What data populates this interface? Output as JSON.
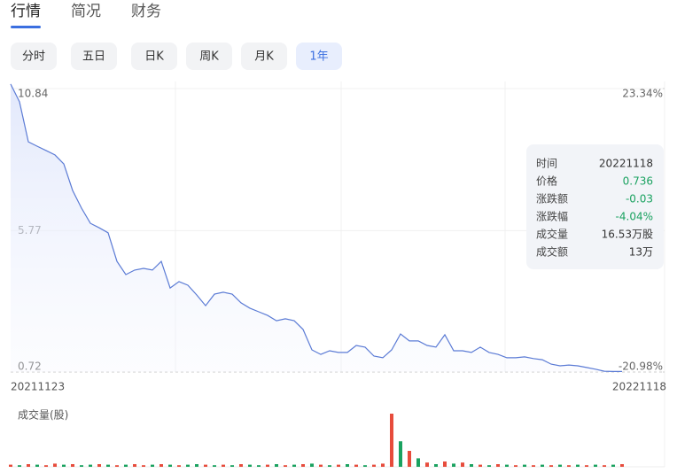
{
  "tabs": {
    "items": [
      "行情",
      "简况",
      "财务"
    ],
    "active": 0
  },
  "periods": {
    "items": [
      "分时",
      "五日",
      "日K",
      "周K",
      "月K",
      "1年"
    ],
    "active": 5
  },
  "chart_data": {
    "type": "line",
    "color": "#5b7bd5",
    "values": [
      11.0,
      10.37,
      8.94,
      8.78,
      8.63,
      8.47,
      8.15,
      7.2,
      6.57,
      6.03,
      5.87,
      5.69,
      4.67,
      4.2,
      4.36,
      4.42,
      4.36,
      4.67,
      3.72,
      3.95,
      3.82,
      3.47,
      3.09,
      3.5,
      3.57,
      3.5,
      3.19,
      3.0,
      2.87,
      2.74,
      2.55,
      2.62,
      2.55,
      2.24,
      1.51,
      1.35,
      1.48,
      1.42,
      1.42,
      1.67,
      1.61,
      1.29,
      1.23,
      1.51,
      2.08,
      1.83,
      1.83,
      1.67,
      1.61,
      2.05,
      1.48,
      1.48,
      1.42,
      1.61,
      1.42,
      1.35,
      1.23,
      1.23,
      1.26,
      1.2,
      1.16,
      1.0,
      0.94,
      0.97,
      0.94,
      0.88,
      0.82,
      0.75,
      0.74,
      0.74
    ],
    "ylim": [
      0.72,
      10.84
    ],
    "yticks": [
      0.72,
      5.77,
      10.84
    ],
    "y2lim": [
      -20.98,
      23.34
    ],
    "y2ticks": [
      {
        "value": -20.98,
        "label": "-20.98%"
      },
      {
        "value": 23.34,
        "label": "23.34%"
      }
    ],
    "x_labels": [
      "20211123",
      "20221118"
    ],
    "volume": {
      "title": "成交量(股)",
      "ylim": [
        0,
        100
      ],
      "values": [
        4,
        3,
        5,
        4,
        3,
        6,
        4,
        5,
        3,
        4,
        5,
        4,
        3,
        4,
        5,
        3,
        4,
        5,
        4,
        3,
        4,
        5,
        4,
        3,
        4,
        3,
        5,
        4,
        3,
        4,
        5,
        3,
        4,
        5,
        6,
        4,
        3,
        4,
        5,
        4,
        3,
        4,
        6,
        100,
        48,
        30,
        16,
        8,
        5,
        10,
        6,
        8,
        5,
        4,
        3,
        5,
        4,
        3,
        4,
        3,
        4,
        3,
        4,
        3,
        4,
        3,
        4,
        3,
        4,
        5
      ],
      "colors": [
        "#e74c3c",
        "#1aa260",
        "#e74c3c",
        "#1aa260",
        "#e74c3c",
        "#e74c3c",
        "#1aa260",
        "#e74c3c",
        "#1aa260",
        "#1aa260",
        "#e74c3c",
        "#1aa260",
        "#e74c3c",
        "#1aa260",
        "#e74c3c",
        "#e74c3c",
        "#1aa260",
        "#e74c3c",
        "#1aa260",
        "#e74c3c",
        "#1aa260",
        "#1aa260",
        "#e74c3c",
        "#1aa260",
        "#e74c3c",
        "#1aa260",
        "#e74c3c",
        "#1aa260",
        "#1aa260",
        "#e74c3c",
        "#1aa260",
        "#e74c3c",
        "#1aa260",
        "#e74c3c",
        "#1aa260",
        "#e74c3c",
        "#1aa260",
        "#e74c3c",
        "#1aa260",
        "#e74c3c",
        "#1aa260",
        "#e74c3c",
        "#e74c3c",
        "#e74c3c",
        "#1aa260",
        "#e74c3c",
        "#1aa260",
        "#e74c3c",
        "#1aa260",
        "#e74c3c",
        "#1aa260",
        "#e74c3c",
        "#1aa260",
        "#e74c3c",
        "#1aa260",
        "#e74c3c",
        "#1aa260",
        "#e74c3c",
        "#1aa260",
        "#e74c3c",
        "#1aa260",
        "#e74c3c",
        "#1aa260",
        "#e74c3c",
        "#1aa260",
        "#e74c3c",
        "#1aa260",
        "#e74c3c",
        "#1aa260",
        "#e74c3c"
      ]
    }
  },
  "tooltip": {
    "rows": [
      {
        "label": "时间",
        "value": "20221118",
        "color": "#333333"
      },
      {
        "label": "价格",
        "value": "0.736",
        "color": "#1aa260"
      },
      {
        "label": "涨跌额",
        "value": "-0.03",
        "color": "#1aa260"
      },
      {
        "label": "涨跌幅",
        "value": "-4.04%",
        "color": "#1aa260"
      },
      {
        "label": "成交量",
        "value": "16.53万股",
        "color": "#333333"
      },
      {
        "label": "成交额",
        "value": "13万",
        "color": "#333333"
      }
    ]
  }
}
